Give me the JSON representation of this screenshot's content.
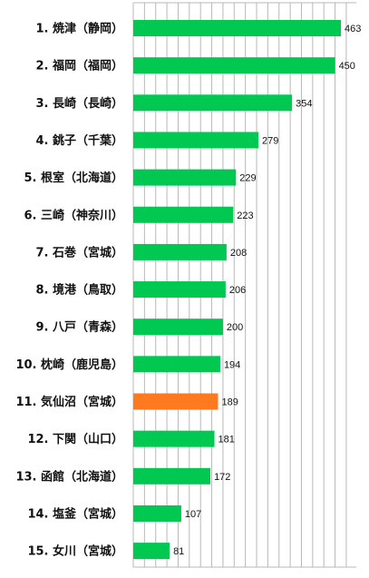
{
  "chart_data": {
    "type": "bar",
    "orientation": "horizontal",
    "categories": [
      "1. 焼津（静岡）",
      "2. 福岡（福岡）",
      "3. 長崎（長崎）",
      "4. 銚子（千葉）",
      "5. 根室（北海道）",
      "6. 三崎（神奈川）",
      "7. 石巻（宮城）",
      "8. 境港（鳥取）",
      "9. 八戸（青森）",
      "10. 枕崎（鹿児島）",
      "11. 気仙沼（宮城）",
      "12. 下関（山口）",
      "13. 函館（北海道）",
      "14. 塩釜（宮城）",
      "15. 女川（宮城）"
    ],
    "values": [
      463,
      450,
      354,
      279,
      229,
      223,
      208,
      206,
      200,
      194,
      189,
      181,
      172,
      107,
      81
    ],
    "value_labels": [
      "463",
      "450",
      "354",
      "279",
      "229",
      "223",
      "208",
      "206",
      "200",
      "194",
      "189",
      "181",
      "172",
      "107",
      "81"
    ],
    "highlight_index": 10,
    "xlim": [
      0,
      500
    ],
    "grid": true,
    "colors": {
      "bar": "#00c850",
      "highlight": "#ff7a1f",
      "grid": "#b8b8b8"
    }
  }
}
